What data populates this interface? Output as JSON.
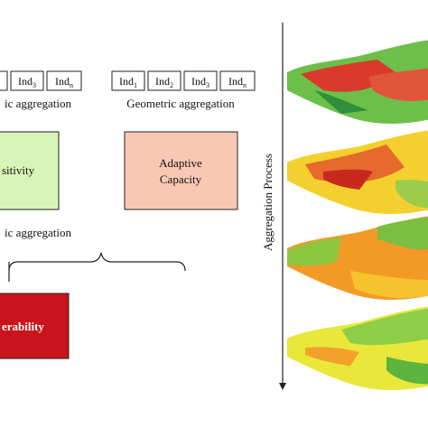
{
  "left_indicators": [
    {
      "base": "Ind",
      "sub": "3"
    },
    {
      "base": "Ind",
      "sub": "n"
    }
  ],
  "left_aggregation": "ic aggregation",
  "sensitivity": "sitivity",
  "right_indicators": [
    {
      "base": "Ind",
      "sub": "1"
    },
    {
      "base": "Ind",
      "sub": "2"
    },
    {
      "base": "Ind",
      "sub": "3"
    },
    {
      "base": "Ind",
      "sub": "n"
    }
  ],
  "right_aggregation": "Geometric aggregation",
  "adaptive_capacity": [
    "Adaptive",
    "Capacity"
  ],
  "bottom_aggregation": "ic aggregation",
  "vulnerability": "erability",
  "axis_label": "Aggregation Process"
}
